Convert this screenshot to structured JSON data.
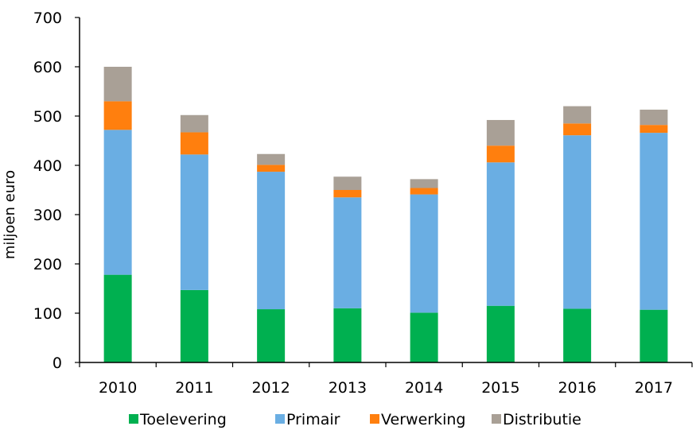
{
  "chart_data": {
    "type": "bar",
    "stacked": true,
    "categories": [
      "2010",
      "2011",
      "2012",
      "2013",
      "2014",
      "2015",
      "2016",
      "2017"
    ],
    "series": [
      {
        "name": "Toelevering",
        "color": "#00b050",
        "values": [
          178,
          147,
          108,
          110,
          101,
          115,
          109,
          107
        ]
      },
      {
        "name": "Primair",
        "color": "#6aaee3",
        "values": [
          294,
          275,
          279,
          225,
          240,
          291,
          352,
          359
        ]
      },
      {
        "name": "Verwerking",
        "color": "#ff7f0e",
        "values": [
          58,
          45,
          14,
          15,
          13,
          34,
          24,
          16
        ]
      },
      {
        "name": "Distributie",
        "color": "#a9a096",
        "values": [
          70,
          35,
          22,
          27,
          18,
          52,
          35,
          31
        ]
      }
    ],
    "title": "",
    "xlabel": "",
    "ylabel": "miljoen euro",
    "ylim": [
      0,
      700
    ],
    "yticks": [
      0,
      100,
      200,
      300,
      400,
      500,
      600,
      700
    ],
    "grid": false,
    "legend_position": "bottom"
  }
}
